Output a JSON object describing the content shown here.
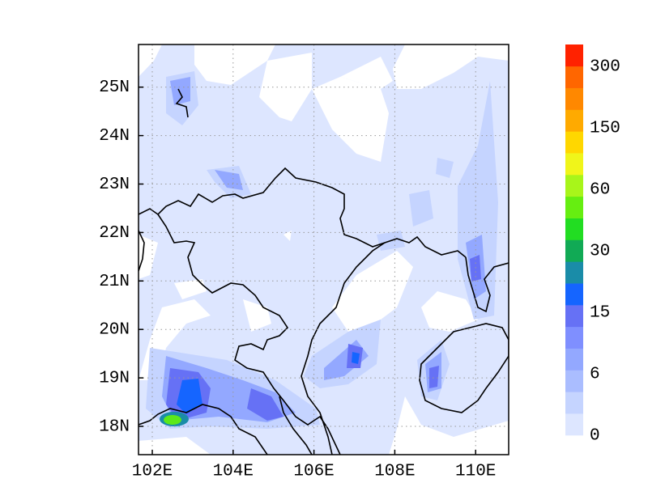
{
  "map": {
    "x_ticks": [
      "102E",
      "104E",
      "106E",
      "108E",
      "110E"
    ],
    "y_ticks": [
      "18N",
      "19N",
      "20N",
      "21N",
      "22N",
      "23N",
      "24N",
      "25N"
    ],
    "colorbar_labels": [
      "0",
      "6",
      "15",
      "30",
      "60",
      "150",
      "300"
    ]
  }
}
